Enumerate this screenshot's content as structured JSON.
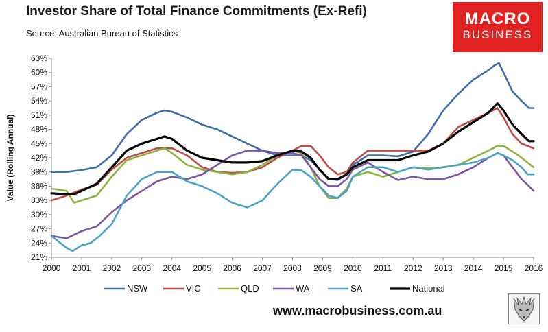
{
  "header": {
    "title": "Investor Share of Total Finance Commitments (Ex-Refi)",
    "subtitle": "Source: Australian Bureau of Statistics"
  },
  "logo": {
    "line1": "MACRO",
    "line2": "BUSINESS",
    "color": "#e32222"
  },
  "footer": {
    "url": "www.macrobusiness.com.au"
  },
  "chart_data": {
    "type": "line",
    "ylabel": "Value (Rolling Annual)",
    "xlabel": "",
    "xlim": [
      2000,
      2016
    ],
    "ylim": [
      21,
      63
    ],
    "y_ticks": [
      21,
      24,
      27,
      30,
      33,
      36,
      39,
      42,
      45,
      48,
      51,
      54,
      57,
      60,
      63
    ],
    "y_tick_labels": [
      "21%",
      "24%",
      "27%",
      "30%",
      "33%",
      "36%",
      "39%",
      "42%",
      "45%",
      "48%",
      "51%",
      "54%",
      "57%",
      "60%",
      "63%"
    ],
    "x_ticks": [
      2000,
      2001,
      2002,
      2003,
      2004,
      2005,
      2006,
      2007,
      2008,
      2009,
      2010,
      2011,
      2012,
      2013,
      2014,
      2015,
      2016
    ],
    "x_tick_labels": [
      "2000",
      "2001",
      "2002",
      "2003",
      "2004",
      "2005",
      "2006",
      "2007",
      "2008",
      "2009",
      "2010",
      "2011",
      "2012",
      "2013",
      "2014",
      "2015",
      "2016"
    ],
    "grid": false,
    "legend_position": "bottom",
    "series": [
      {
        "name": "NSW",
        "color": "#3e6cae",
        "x": [
          2000,
          2000.5,
          2001,
          2001.5,
          2002,
          2002.5,
          2003,
          2003.5,
          2003.75,
          2004,
          2004.5,
          2005,
          2005.5,
          2006,
          2006.5,
          2007,
          2007.5,
          2008,
          2008.3,
          2008.6,
          2008.9,
          2009.2,
          2009.5,
          2009.8,
          2010,
          2010.5,
          2011,
          2011.5,
          2012,
          2012.5,
          2013,
          2013.5,
          2014,
          2014.5,
          2014.7,
          2014.85,
          2015,
          2015.3,
          2015.6,
          2015.85,
          2016
        ],
        "y": [
          39,
          39,
          39.4,
          40,
          42.5,
          47,
          50,
          51.5,
          52,
          51.7,
          50.5,
          49,
          48,
          46.5,
          45,
          43.5,
          42.5,
          42.5,
          42.5,
          41.5,
          39.5,
          37.5,
          37.3,
          38.5,
          40.5,
          42.5,
          42.5,
          42.3,
          43.3,
          47,
          52,
          55.5,
          58.5,
          60.5,
          61.5,
          62,
          60,
          56,
          54,
          52.5,
          52.5
        ]
      },
      {
        "name": "VIC",
        "color": "#bf4a45",
        "x": [
          2000,
          2000.5,
          2001,
          2001.5,
          2002,
          2002.5,
          2003,
          2003.5,
          2004,
          2004.5,
          2005,
          2005.5,
          2006,
          2006.5,
          2007,
          2007.5,
          2008,
          2008.3,
          2008.6,
          2008.9,
          2009.2,
          2009.5,
          2009.8,
          2010,
          2010.5,
          2011,
          2011.5,
          2012,
          2012.5,
          2013,
          2013.5,
          2014,
          2014.5,
          2014.8,
          2015,
          2015.3,
          2015.6,
          2016
        ],
        "y": [
          33,
          34,
          35.3,
          36.3,
          39.5,
          42,
          43,
          44,
          44,
          42.5,
          40,
          39,
          38.8,
          39,
          40,
          42,
          43.5,
          44.5,
          44.5,
          42.5,
          40,
          38.5,
          39,
          41,
          43.5,
          43.5,
          43.5,
          43.5,
          43.5,
          45,
          48.5,
          50,
          51.5,
          52.5,
          50.5,
          47,
          45,
          44
        ]
      },
      {
        "name": "QLD",
        "color": "#8db33c",
        "x": [
          2000,
          2000.5,
          2000.75,
          2001,
          2001.5,
          2002,
          2002.5,
          2003,
          2003.5,
          2003.75,
          2004,
          2004.5,
          2005,
          2005.5,
          2006,
          2006.5,
          2007,
          2007.5,
          2008,
          2008.3,
          2008.6,
          2008.9,
          2009.2,
          2009.5,
          2009.8,
          2010,
          2010.5,
          2011,
          2011.5,
          2012,
          2012.5,
          2013,
          2013.5,
          2014,
          2014.5,
          2014.8,
          2015,
          2015.5,
          2016
        ],
        "y": [
          35.5,
          35,
          32.5,
          33,
          34,
          38,
          41.5,
          42.5,
          43.5,
          44,
          43,
          40.5,
          39.5,
          39,
          38.5,
          39,
          40.5,
          42.5,
          43.5,
          43,
          40,
          36,
          33.5,
          33.5,
          35.5,
          38,
          39,
          38,
          39,
          40,
          39.8,
          40,
          40.5,
          42,
          43.5,
          44.5,
          44.5,
          42.5,
          40
        ]
      },
      {
        "name": "WA",
        "color": "#7c56a2",
        "x": [
          2000,
          2000.5,
          2001,
          2001.5,
          2002,
          2002.5,
          2003,
          2003.5,
          2004,
          2004.5,
          2005,
          2005.5,
          2006,
          2006.5,
          2007,
          2007.5,
          2008,
          2008.3,
          2008.6,
          2008.9,
          2009.2,
          2009.5,
          2009.8,
          2010,
          2010.5,
          2011,
          2011.5,
          2012,
          2012.5,
          2013,
          2013.5,
          2014,
          2014.5,
          2014.8,
          2015,
          2015.3,
          2015.6,
          2015.85,
          2016
        ],
        "y": [
          25.5,
          25,
          26.5,
          27.5,
          30.5,
          33,
          35,
          37,
          38,
          37.5,
          38.5,
          40.5,
          42.5,
          43.5,
          43.5,
          43,
          43,
          42.5,
          40,
          37.5,
          36,
          36,
          37.5,
          39.5,
          41,
          39,
          37.3,
          38,
          37.5,
          37.5,
          38.5,
          40,
          42,
          43,
          42.5,
          40,
          37.5,
          36,
          35
        ]
      },
      {
        "name": "SA",
        "color": "#4aa2c6",
        "x": [
          2000,
          2000.3,
          2000.5,
          2000.7,
          2001,
          2001.3,
          2001.6,
          2002,
          2002.5,
          2003,
          2003.5,
          2004,
          2004.5,
          2005,
          2005.5,
          2006,
          2006.5,
          2007,
          2007.5,
          2008,
          2008.3,
          2008.6,
          2008.9,
          2009.2,
          2009.5,
          2009.8,
          2010,
          2010.5,
          2011,
          2011.5,
          2012,
          2012.5,
          2013,
          2013.5,
          2014,
          2014.5,
          2014.8,
          2015,
          2015.3,
          2015.6,
          2015.8,
          2016
        ],
        "y": [
          25.5,
          24,
          23,
          22.3,
          23.5,
          24,
          25.5,
          28,
          34,
          37.5,
          39,
          39,
          37,
          36,
          34.5,
          32.5,
          31.5,
          33,
          36.5,
          39.5,
          39.3,
          38,
          36,
          34,
          33.5,
          35,
          38,
          40,
          40,
          39,
          40,
          39.5,
          40,
          40.5,
          41,
          42,
          43,
          42.5,
          41.5,
          40,
          38.5,
          38.5
        ]
      },
      {
        "name": "National",
        "color": "#000000",
        "x": [
          2000,
          2000.5,
          2000.75,
          2001,
          2001.5,
          2002,
          2002.5,
          2003,
          2003.5,
          2003.75,
          2004,
          2004.5,
          2005,
          2005.5,
          2006,
          2006.5,
          2007,
          2007.5,
          2008,
          2008.3,
          2008.6,
          2008.9,
          2009.2,
          2009.5,
          2009.8,
          2010,
          2010.5,
          2011,
          2011.5,
          2012,
          2012.5,
          2013,
          2013.5,
          2014,
          2014.5,
          2014.8,
          2015,
          2015.3,
          2015.6,
          2015.85,
          2016
        ],
        "y": [
          34.5,
          34.3,
          34.3,
          35,
          36.5,
          40,
          43.5,
          45,
          46,
          46.5,
          46,
          43.5,
          42,
          41.5,
          41,
          41,
          41.3,
          42.5,
          43.5,
          43.3,
          42,
          39.5,
          37.5,
          37.5,
          38.5,
          40,
          41.5,
          41.5,
          41.5,
          42.5,
          43.3,
          45,
          47.5,
          49.5,
          51.5,
          53.5,
          52,
          49,
          47,
          45.5,
          45.5
        ]
      }
    ]
  }
}
